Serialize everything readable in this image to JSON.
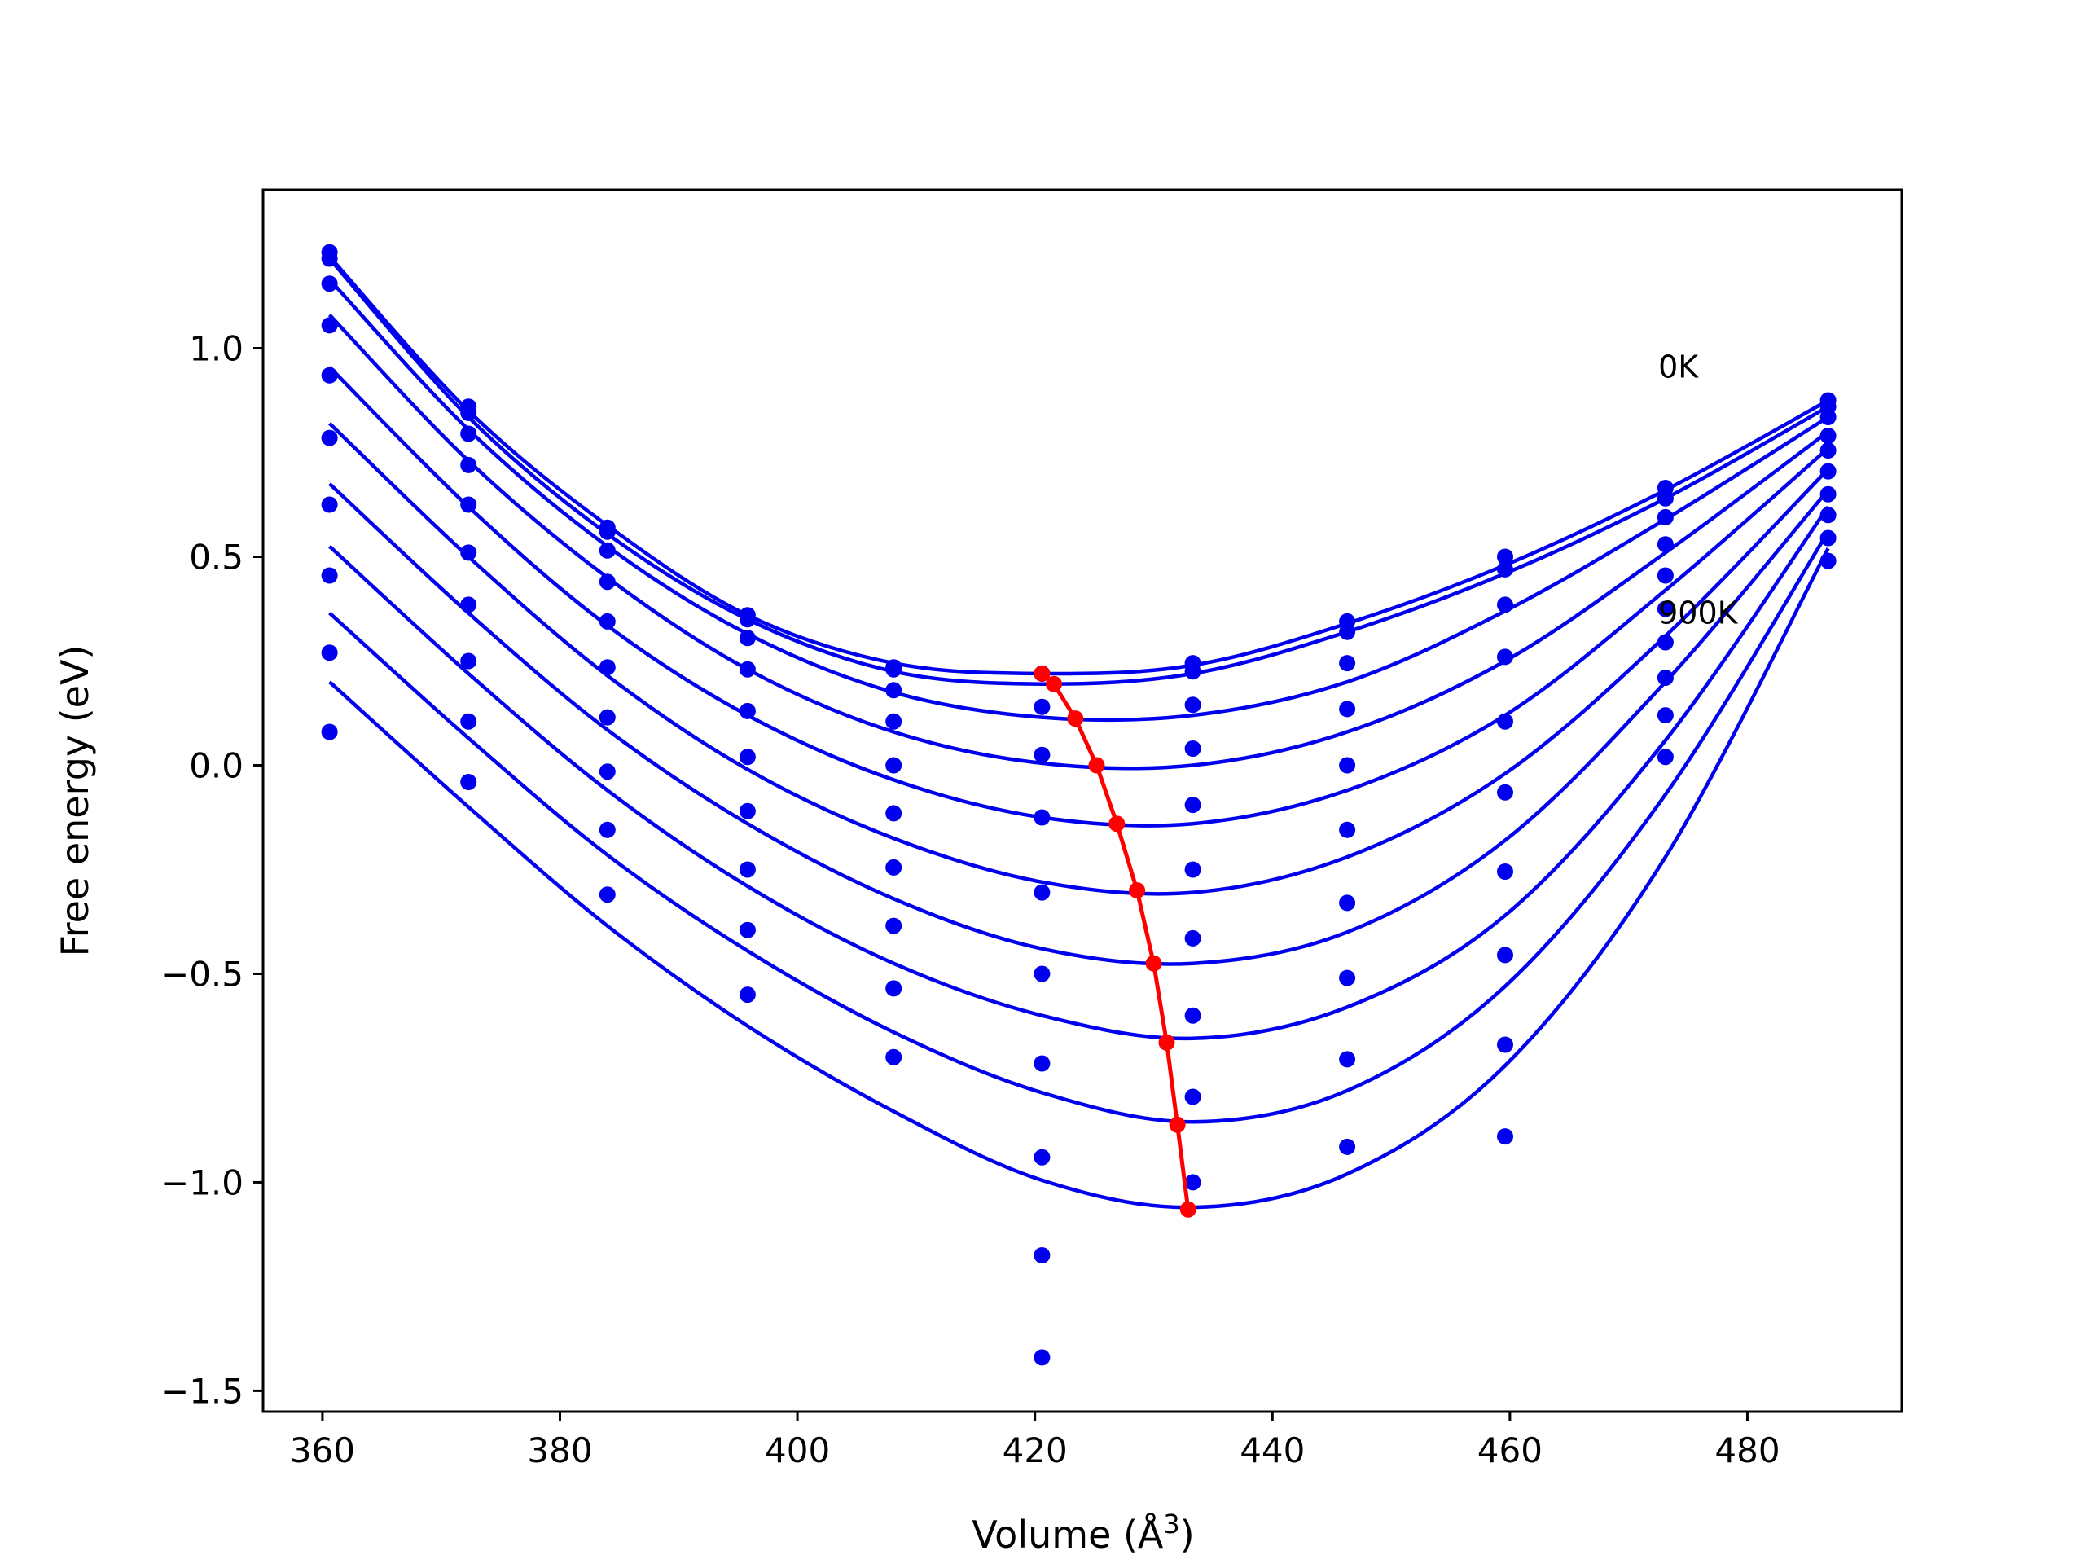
{
  "chart_data": {
    "type": "line",
    "title": "",
    "xlabel": "Volume (Å",
    "xlabel_sup": "3",
    "xlabel_end": ")",
    "ylabel": "Free energy (eV)",
    "xlim": [
      355,
      493
    ],
    "ylim": [
      -1.55,
      1.38
    ],
    "xticks": [
      {
        "value": 360,
        "label": "360"
      },
      {
        "value": 380,
        "label": "380"
      },
      {
        "value": 400,
        "label": "400"
      },
      {
        "value": 420,
        "label": "420"
      },
      {
        "value": 440,
        "label": "440"
      },
      {
        "value": 460,
        "label": "460"
      },
      {
        "value": 480,
        "label": "480"
      }
    ],
    "yticks": [
      {
        "value": 1.0,
        "label": "1.0"
      },
      {
        "value": 0.5,
        "label": "0.5"
      },
      {
        "value": 0.0,
        "label": "0.0"
      },
      {
        "value": -0.5,
        "label": "−0.5"
      },
      {
        "value": -1.0,
        "label": "−1.0"
      },
      {
        "value": -1.5,
        "label": "−1.5"
      }
    ],
    "grid": false,
    "fit_color": "#0000ee",
    "point_color": "#0000ee",
    "minimum_color": "#ff0000",
    "annotations": [
      {
        "text": "0K",
        "x": 472.5,
        "y": 0.93
      },
      {
        "text": "900K",
        "x": 472.5,
        "y": 0.34
      }
    ],
    "volumes": [
      360.6,
      372.3,
      384.0,
      395.8,
      408.1,
      420.6,
      433.3,
      446.3,
      459.6,
      473.1,
      486.8
    ],
    "series": [
      {
        "points": [
          1.23,
          0.86,
          0.57,
          0.36,
          0.235,
          0.22,
          0.245,
          0.345,
          0.5,
          0.665,
          0.875
        ],
        "fit": [
          [
            360.6,
            1.22
          ],
          [
            372.3,
            0.85
          ],
          [
            384.0,
            0.575
          ],
          [
            395.8,
            0.36
          ],
          [
            408.1,
            0.245
          ],
          [
            420.6,
            0.22
          ],
          [
            433.3,
            0.24
          ],
          [
            446.3,
            0.34
          ],
          [
            459.6,
            0.48
          ],
          [
            473.1,
            0.66
          ],
          [
            486.8,
            0.875
          ]
        ]
      },
      {
        "points": [
          1.215,
          0.845,
          0.56,
          0.35,
          0.23,
          0.22,
          0.225,
          0.32,
          0.47,
          0.64,
          0.86
        ],
        "fit": [
          [
            360.6,
            1.215
          ],
          [
            372.3,
            0.835
          ],
          [
            384.0,
            0.555
          ],
          [
            395.8,
            0.35
          ],
          [
            408.1,
            0.225
          ],
          [
            420.6,
            0.195
          ],
          [
            433.3,
            0.22
          ],
          [
            446.3,
            0.32
          ],
          [
            459.6,
            0.46
          ],
          [
            473.1,
            0.64
          ],
          [
            486.8,
            0.86
          ]
        ]
      },
      {
        "points": [
          1.155,
          0.795,
          0.515,
          0.305,
          0.18,
          0.14,
          0.145,
          0.245,
          0.385,
          0.595,
          0.835
        ],
        "fit": [
          [
            360.6,
            1.165
          ],
          [
            372.3,
            0.805
          ],
          [
            384.0,
            0.525
          ],
          [
            395.8,
            0.315
          ],
          [
            408.1,
            0.175
          ],
          [
            420.6,
            0.115
          ],
          [
            433.3,
            0.12
          ],
          [
            446.3,
            0.2
          ],
          [
            459.6,
            0.37
          ],
          [
            473.1,
            0.59
          ],
          [
            486.8,
            0.835
          ]
        ]
      },
      {
        "points": [
          1.055,
          0.72,
          0.44,
          0.23,
          0.105,
          0.025,
          0.04,
          0.135,
          0.26,
          0.53,
          0.79
        ],
        "fit": [
          [
            360.6,
            1.08
          ],
          [
            372.3,
            0.73
          ],
          [
            384.0,
            0.45
          ],
          [
            395.8,
            0.23
          ],
          [
            408.1,
            0.08
          ],
          [
            420.6,
            0.005
          ],
          [
            433.3,
            0.0
          ],
          [
            446.3,
            0.08
          ],
          [
            459.6,
            0.25
          ],
          [
            473.1,
            0.51
          ],
          [
            486.8,
            0.8
          ]
        ]
      },
      {
        "points": [
          0.935,
          0.625,
          0.345,
          0.13,
          0.0,
          -0.125,
          -0.095,
          0.0,
          0.105,
          0.455,
          0.755
        ],
        "fit": [
          [
            360.6,
            0.955
          ],
          [
            372.3,
            0.62
          ],
          [
            384.0,
            0.335
          ],
          [
            395.8,
            0.12
          ],
          [
            408.1,
            -0.035
          ],
          [
            420.6,
            -0.125
          ],
          [
            433.3,
            -0.14
          ],
          [
            446.3,
            -0.06
          ],
          [
            459.6,
            0.12
          ],
          [
            473.1,
            0.42
          ],
          [
            486.8,
            0.76
          ]
        ]
      },
      {
        "points": [
          0.785,
          0.51,
          0.235,
          0.02,
          -0.115,
          -0.305,
          -0.25,
          -0.155,
          -0.065,
          0.375,
          0.705
        ],
        "fit": [
          [
            360.6,
            0.82
          ],
          [
            372.3,
            0.5
          ],
          [
            384.0,
            0.215
          ],
          [
            395.8,
            -0.01
          ],
          [
            408.1,
            -0.175
          ],
          [
            420.6,
            -0.28
          ],
          [
            433.3,
            -0.305
          ],
          [
            446.3,
            -0.22
          ],
          [
            459.6,
            -0.02
          ],
          [
            473.1,
            0.31
          ],
          [
            486.8,
            0.71
          ]
        ]
      },
      {
        "points": [
          0.625,
          0.385,
          0.115,
          -0.11,
          -0.245,
          -0.5,
          -0.415,
          -0.33,
          -0.255,
          0.295,
          0.65
        ],
        "fit": [
          [
            360.6,
            0.675
          ],
          [
            372.3,
            0.365
          ],
          [
            384.0,
            0.085
          ],
          [
            395.8,
            -0.14
          ],
          [
            408.1,
            -0.32
          ],
          [
            420.6,
            -0.44
          ],
          [
            433.3,
            -0.475
          ],
          [
            446.3,
            -0.4
          ],
          [
            459.6,
            -0.18
          ],
          [
            473.1,
            0.2
          ],
          [
            486.8,
            0.66
          ]
        ]
      },
      {
        "points": [
          0.455,
          0.25,
          -0.015,
          -0.25,
          -0.385,
          -0.715,
          -0.6,
          -0.51,
          -0.455,
          0.21,
          0.6
        ],
        "fit": [
          [
            360.6,
            0.525
          ],
          [
            372.3,
            0.22
          ],
          [
            384.0,
            -0.06
          ],
          [
            395.8,
            -0.29
          ],
          [
            408.1,
            -0.475
          ],
          [
            420.6,
            -0.6
          ],
          [
            433.3,
            -0.655
          ],
          [
            446.3,
            -0.58
          ],
          [
            459.6,
            -0.36
          ],
          [
            473.1,
            0.06
          ],
          [
            486.8,
            0.62
          ]
        ]
      },
      {
        "points": [
          0.27,
          0.105,
          -0.155,
          -0.395,
          -0.535,
          -0.94,
          -0.795,
          -0.705,
          -0.67,
          0.12,
          0.545
        ],
        "fit": [
          [
            360.6,
            0.365
          ],
          [
            372.3,
            0.065
          ],
          [
            384.0,
            -0.215
          ],
          [
            395.8,
            -0.445
          ],
          [
            408.1,
            -0.64
          ],
          [
            420.6,
            -0.785
          ],
          [
            433.3,
            -0.855
          ],
          [
            446.3,
            -0.78
          ],
          [
            459.6,
            -0.53
          ],
          [
            473.1,
            -0.07
          ],
          [
            486.8,
            0.56
          ]
        ]
      },
      {
        "points": [
          0.08,
          -0.04,
          -0.31,
          -0.55,
          -0.7,
          -1.175,
          -1.0,
          -0.915,
          -0.89,
          0.02,
          0.49
        ],
        "fit": [
          [
            360.6,
            0.2
          ],
          [
            372.3,
            -0.1
          ],
          [
            384.0,
            -0.385
          ],
          [
            395.8,
            -0.625
          ],
          [
            408.1,
            -0.83
          ],
          [
            420.6,
            -0.995
          ],
          [
            433.3,
            -1.06
          ],
          [
            446.3,
            -0.98
          ],
          [
            459.6,
            -0.72
          ],
          [
            473.1,
            -0.22
          ],
          [
            486.8,
            0.52
          ]
        ]
      }
    ],
    "extra_points": [
      [
        420.6,
        -1.42
      ]
    ],
    "minimum_curve": [
      [
        420.6,
        0.22
      ],
      [
        421.6,
        0.195
      ],
      [
        423.4,
        0.112
      ],
      [
        425.2,
        0.0
      ],
      [
        426.9,
        -0.14
      ],
      [
        428.6,
        -0.3
      ],
      [
        430.0,
        -0.475
      ],
      [
        431.1,
        -0.665
      ],
      [
        432.0,
        -0.862
      ],
      [
        432.9,
        -1.065
      ]
    ]
  }
}
